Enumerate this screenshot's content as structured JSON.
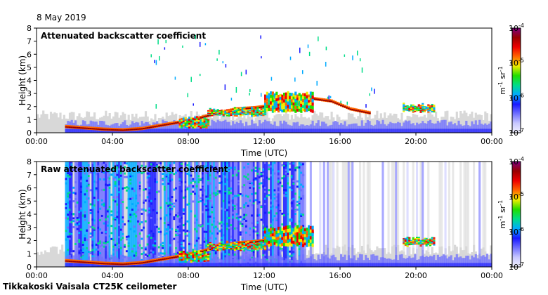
{
  "date_label": "8 May 2019",
  "footer": "Tikkakoski Vaisala CT25K ceilometer",
  "colors": {
    "colormap": [
      "#f2f2ff",
      "#c8c8ff",
      "#7070ff",
      "#1818ff",
      "#00aaff",
      "#00dd88",
      "#22dd00",
      "#eeee00",
      "#ff6600",
      "#ee0000",
      "#990000",
      "#800080"
    ],
    "noise_gray": "#d8d8d8",
    "frame": "#000000"
  },
  "chart_data": [
    {
      "type": "heatmap",
      "title": "Attenuated backscatter coefficient",
      "xlabel": "Time (UTC)",
      "ylabel": "Height (km)",
      "x_tick_labels": [
        "00:00",
        "04:00",
        "08:00",
        "12:00",
        "16:00",
        "20:00",
        "00:00"
      ],
      "y_tick_labels": [
        "0",
        "1",
        "2",
        "3",
        "4",
        "5",
        "6",
        "7",
        "8"
      ],
      "xlim_hours": [
        0,
        24
      ],
      "ylim_km": [
        0,
        8
      ],
      "colorbar": {
        "label": "m-1 sr-1",
        "scale": "log",
        "range": [
          1e-07,
          0.0001
        ],
        "tick_labels": [
          "10-4",
          "10-5",
          "10-6",
          "10-7"
        ]
      },
      "features": {
        "boundary_layer_top_km": [
          [
            1.5,
            0.45
          ],
          [
            2.5,
            0.35
          ],
          [
            3.5,
            0.25
          ],
          [
            4.5,
            0.2
          ],
          [
            5.5,
            0.3
          ],
          [
            6.5,
            0.55
          ],
          [
            7.5,
            0.8
          ],
          [
            8.5,
            1.1
          ],
          [
            9.5,
            1.5
          ],
          [
            10.5,
            1.8
          ],
          [
            11.5,
            1.9
          ],
          [
            12.5,
            2.1
          ],
          [
            13.5,
            2.3
          ],
          [
            14.5,
            2.6
          ],
          [
            15.5,
            2.4
          ],
          [
            16.5,
            1.8
          ],
          [
            17.5,
            1.5
          ]
        ],
        "cloud_layers": [
          {
            "start_h": 7.5,
            "end_h": 9.0,
            "base_km": 0.3,
            "top_km": 1.3
          },
          {
            "start_h": 9.0,
            "end_h": 12.0,
            "base_km": 1.2,
            "top_km": 2.0
          },
          {
            "start_h": 12.0,
            "end_h": 14.5,
            "base_km": 1.5,
            "top_km": 3.2
          },
          {
            "start_h": 19.3,
            "end_h": 21.0,
            "base_km": 1.5,
            "top_km": 2.3
          }
        ],
        "data_start_h": 1.5,
        "data_end_h": 24
      }
    },
    {
      "type": "heatmap",
      "title": "Raw attenuated backscatter coefficient",
      "xlabel": "Time (UTC)",
      "ylabel": "Height (km)",
      "x_tick_labels": [
        "00:00",
        "04:00",
        "08:00",
        "12:00",
        "16:00",
        "20:00",
        "00:00"
      ],
      "y_tick_labels": [
        "0",
        "1",
        "2",
        "3",
        "4",
        "5",
        "6",
        "7",
        "8"
      ],
      "xlim_hours": [
        0,
        24
      ],
      "ylim_km": [
        0,
        8
      ],
      "colorbar": {
        "label": "m-1 sr-1",
        "scale": "log",
        "range": [
          1e-07,
          0.0001
        ],
        "tick_labels": [
          "10-4",
          "10-5",
          "10-6",
          "10-7"
        ]
      },
      "features": {
        "noisy_columns_start_h": 1.5,
        "noisy_columns_end_h": 14.0,
        "low_signal_from_h": 14.0,
        "data_start_h": 1.5,
        "data_end_h": 24
      }
    }
  ]
}
